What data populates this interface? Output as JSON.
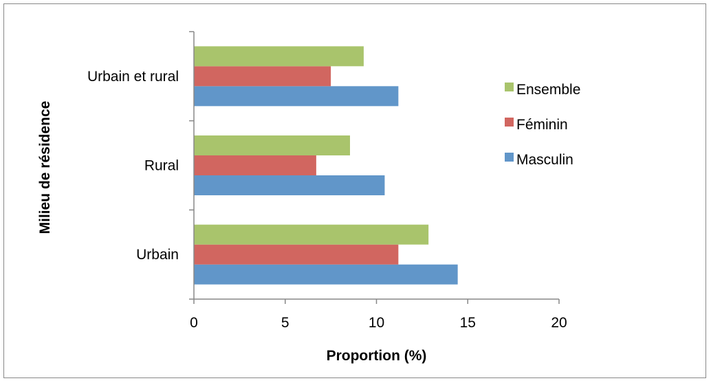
{
  "chart_data": {
    "type": "bar",
    "orientation": "horizontal",
    "categories": [
      "Urbain",
      "Rural",
      "Urbain et rural"
    ],
    "series": [
      {
        "name": "Masculin",
        "color": "#6196c9",
        "values": [
          14.45,
          10.45,
          11.2
        ]
      },
      {
        "name": "Féminin",
        "color": "#d16660",
        "values": [
          11.2,
          6.7,
          7.5
        ]
      },
      {
        "name": "Ensemble",
        "color": "#a9c46c",
        "values": [
          12.85,
          8.55,
          9.3
        ]
      }
    ],
    "legend_order": [
      "Ensemble",
      "Féminin",
      "Masculin"
    ],
    "xlabel": "Proportion (%)",
    "ylabel": "Milieu de résidence",
    "xlim": [
      0,
      20
    ],
    "xticks": [
      0,
      5,
      10,
      15,
      20
    ],
    "grid": false,
    "legend_position": "right"
  }
}
